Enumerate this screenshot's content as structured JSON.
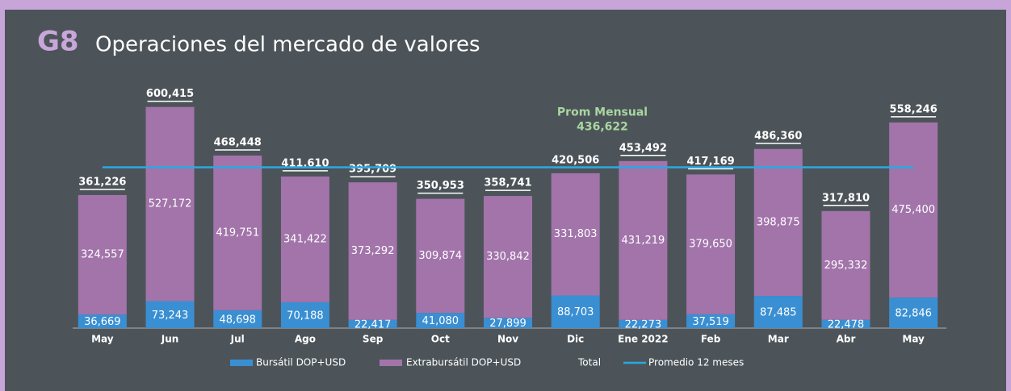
{
  "chart_data": {
    "type": "bar",
    "stacked": true,
    "label": "G8",
    "title": "Operaciones del mercado de valores",
    "categories": [
      "May",
      "Jun",
      "Jul",
      "Ago",
      "Sep",
      "Oct",
      "Nov",
      "Dic",
      "Ene 2022",
      "Feb",
      "Mar",
      "Abr",
      "May"
    ],
    "series": [
      {
        "name": "Bursátil DOP+USD",
        "color": "#3a8fd2",
        "values": [
          36669,
          73243,
          48698,
          70188,
          22417,
          41080,
          27899,
          88703,
          22273,
          37519,
          87485,
          22478,
          82846
        ],
        "value_labels": [
          "36,669",
          "73,243",
          "48,698",
          "70,188",
          "22,417",
          "41,080",
          "27,899",
          "88,703",
          "22,273",
          "37,519",
          "87,485",
          "22,478",
          "82,846"
        ]
      },
      {
        "name": "Extrabursátil DOP+USD",
        "color": "#a274aa",
        "values": [
          324557,
          527172,
          419751,
          341422,
          373292,
          309874,
          330842,
          331803,
          431219,
          379650,
          398875,
          295332,
          475400
        ],
        "value_labels": [
          "324,557",
          "527,172",
          "419,751",
          "341,422",
          "373,292",
          "309,874",
          "330,842",
          "331,803",
          "431,219",
          "379,650",
          "398,875",
          "295,332",
          "475,400"
        ]
      }
    ],
    "totals": {
      "name": "Total",
      "values": [
        361226,
        600415,
        468448,
        411610,
        395709,
        350953,
        358741,
        420506,
        453492,
        417169,
        486360,
        317810,
        558246
      ],
      "value_labels": [
        "361,226",
        "600,415",
        "468,448",
        "411,610",
        "395,709",
        "350,953",
        "358,741",
        "420,506",
        "453,492",
        "417,169",
        "486,360",
        "317,810",
        "558,246"
      ]
    },
    "average": {
      "name": "Promedio 12 meses",
      "color": "#29a9e1",
      "annotation": "Prom Mensual",
      "value": 436622,
      "label": "436,622",
      "annotation_color": "#a9d6a0"
    },
    "ylim": [
      0,
      650000
    ]
  }
}
